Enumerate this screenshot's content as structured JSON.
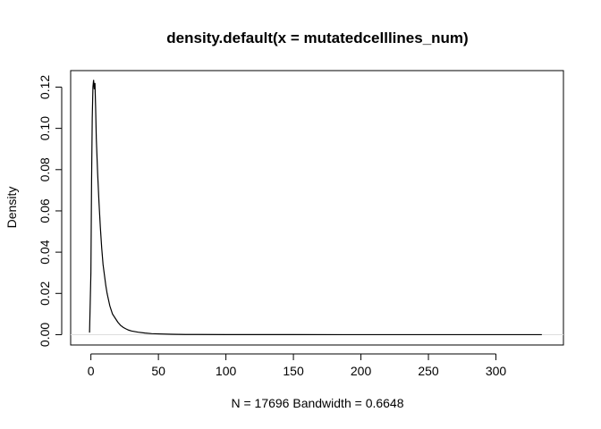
{
  "chart_data": {
    "type": "line",
    "title": "density.default(x = mutatedcelllines_num)",
    "xlabel": "N = 17696   Bandwidth = 0.6648",
    "ylabel": "Density",
    "xlim": [
      -15,
      350
    ],
    "ylim": [
      -0.005,
      0.128
    ],
    "x_ticks": [
      0,
      50,
      100,
      150,
      200,
      250,
      300
    ],
    "x_tick_labels": [
      "0",
      "50",
      "100",
      "150",
      "200",
      "250",
      "300"
    ],
    "y_ticks": [
      0.0,
      0.02,
      0.04,
      0.06,
      0.08,
      0.1,
      0.12
    ],
    "y_tick_labels": [
      "0.00",
      "0.02",
      "0.04",
      "0.06",
      "0.08",
      "0.10",
      "0.12"
    ],
    "grid": false,
    "baseline": 0,
    "series": [
      {
        "color": "#000000",
        "x": [
          -1,
          0,
          0.5,
          1,
          1.5,
          2,
          2.5,
          3,
          3.5,
          4,
          5,
          6,
          7,
          8,
          9,
          10,
          11,
          12,
          13,
          14,
          15,
          16,
          18,
          20,
          22,
          24,
          26,
          28,
          30,
          35,
          40,
          45,
          50,
          60,
          70,
          80,
          100,
          150,
          200,
          250,
          300,
          334
        ],
        "y": [
          0.001,
          0.03,
          0.075,
          0.105,
          0.12,
          0.1235,
          0.119,
          0.122,
          0.11,
          0.095,
          0.078,
          0.064,
          0.052,
          0.042,
          0.034,
          0.029,
          0.024,
          0.02,
          0.017,
          0.014,
          0.012,
          0.01,
          0.008,
          0.006,
          0.0045,
          0.0035,
          0.0028,
          0.0022,
          0.0018,
          0.0012,
          0.0008,
          0.0005,
          0.0004,
          0.0002,
          0.0001,
          8e-05,
          5e-05,
          2e-05,
          1e-05,
          1e-05,
          1e-05,
          0.0
        ]
      }
    ]
  }
}
